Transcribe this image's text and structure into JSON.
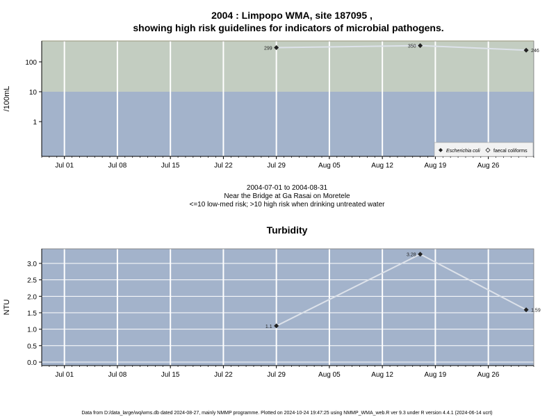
{
  "figure": {
    "title_line1": "2004 : Limpopo WMA, site 187095 ,",
    "title_line2": "showing high risk guidelines for indicators of microbial pathogens.",
    "caption_line1": "2004-07-01 to 2004-08-31",
    "caption_line2": "Near the Bridge at Ga Rasai on Moretele",
    "caption_line3": "<=10 low-med risk; >10 high risk when drinking untreated water",
    "footer": "Data from D:/data_large/wq/wms.db dated 2024-08-27, mainly NMMP programme. Plotted on 2024-10-24 19:47:25 using NMMP_WMA_web.R ver 9.3 under R version 4.4.1 (2024-06-14 ucrt)"
  },
  "colors": {
    "high_risk_band": "#c3cdc1",
    "low_risk_band": "#a3b3cb",
    "panel_bg": "#a3b3cb",
    "grid": "#ffffff",
    "series_line": "#dde2ea",
    "marker": "#222222"
  },
  "chart_data": [
    {
      "type": "line",
      "ylabel": "/100mL",
      "yscale": "log",
      "yticks": [
        1,
        10,
        100
      ],
      "ytick_labels": [
        "1",
        "10",
        "100"
      ],
      "xticks": [
        "Jul 01",
        "Jul 08",
        "Jul 15",
        "Jul 22",
        "Jul 29",
        "Aug 05",
        "Aug 12",
        "Aug 19",
        "Aug 26"
      ],
      "xlim": [
        "2004-06-28",
        "2004-09-01"
      ],
      "threshold": 10,
      "legend": {
        "position": "bottom-right",
        "entries": [
          "Escherichia coli",
          "faecal coliforms"
        ]
      },
      "series": [
        {
          "name": "Escherichia coli",
          "marker": "filled-diamond",
          "points": [
            {
              "x": "2004-07-29",
              "y": 299,
              "label": "299"
            },
            {
              "x": "2004-08-17",
              "y": 350,
              "label": "350"
            },
            {
              "x": "2004-08-31",
              "y": 246,
              "label": "246"
            }
          ]
        }
      ]
    },
    {
      "type": "line",
      "title": "Turbidity",
      "ylabel": "NTU",
      "ylim": [
        -0.1,
        3.4
      ],
      "yticks": [
        0.0,
        0.5,
        1.0,
        1.5,
        2.0,
        2.5,
        3.0
      ],
      "ytick_labels": [
        "0.0",
        "0.5",
        "1.0",
        "1.5",
        "2.0",
        "2.5",
        "3.0"
      ],
      "xticks": [
        "Jul 01",
        "Jul 08",
        "Jul 15",
        "Jul 22",
        "Jul 29",
        "Aug 05",
        "Aug 12",
        "Aug 19",
        "Aug 26"
      ],
      "xlim": [
        "2004-06-28",
        "2004-09-01"
      ],
      "series": [
        {
          "marker": "filled-diamond",
          "points": [
            {
              "x": "2004-07-29",
              "y": 1.1,
              "label": "1.1"
            },
            {
              "x": "2004-08-17",
              "y": 3.28,
              "label": "3.28"
            },
            {
              "x": "2004-08-31",
              "y": 1.59,
              "label": "1.59"
            }
          ]
        }
      ]
    }
  ]
}
